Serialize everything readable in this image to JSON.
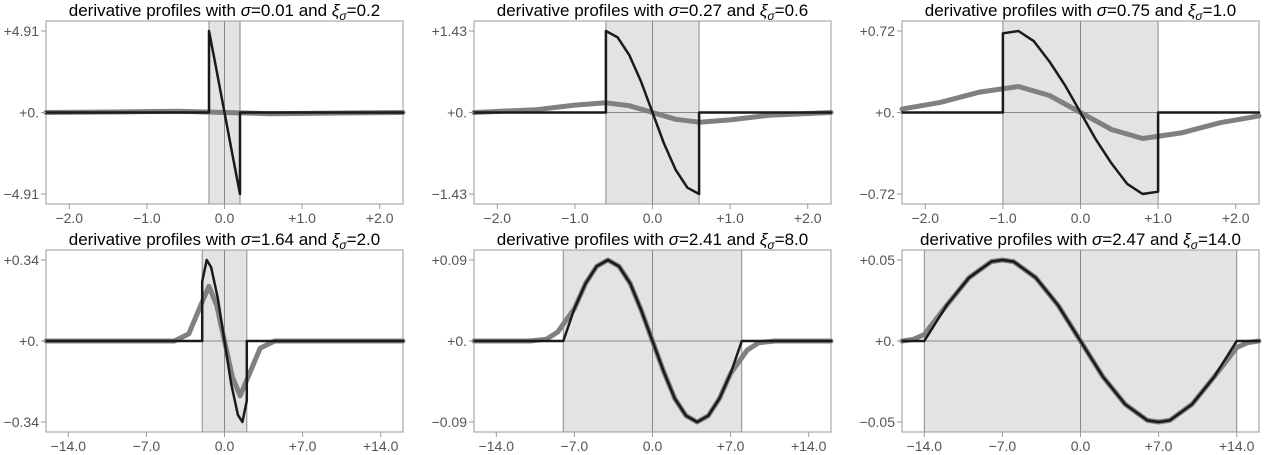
{
  "chart_data": [
    {
      "type": "line",
      "title_prefix": "derivative profiles with ",
      "sigma_symbol": "σ",
      "sigma": "0.01",
      "and_word": " and ",
      "xi_symbol": "ξ",
      "xi_sub": "σ",
      "xi": "0.2",
      "xlim": [
        -2.3,
        2.3
      ],
      "ylim": [
        -4.91,
        4.91
      ],
      "xticks": [
        -2.0,
        -1.0,
        0.0,
        1.0,
        2.0
      ],
      "xtick_labels": [
        "−2.0",
        "−1.0",
        "0.0",
        "+1.0",
        "+2.0"
      ],
      "yticks": [
        4.91,
        0.0,
        -4.91
      ],
      "ytick_labels": [
        "+4.91",
        "+0.",
        "−4.91"
      ],
      "shaded_region": [
        -0.2,
        0.2
      ],
      "gray_amp": 0.07,
      "series": [
        {
          "color": "#1a1a1a",
          "x": [
            -2.3,
            -0.2,
            -0.2,
            -0.1,
            0.0,
            0.1,
            0.2,
            0.2,
            2.3
          ],
          "y": [
            0.0,
            0.0,
            4.91,
            2.5,
            0.0,
            -2.5,
            -4.91,
            0.0,
            0.0
          ]
        },
        {
          "color": "#808080",
          "x": [
            -2.3,
            -1.2,
            -0.6,
            0.0,
            0.6,
            1.2,
            2.3
          ],
          "y": [
            0.0,
            0.04,
            0.07,
            0.0,
            -0.07,
            -0.04,
            0.0
          ]
        }
      ]
    },
    {
      "type": "line",
      "title_prefix": "derivative profiles with ",
      "sigma_symbol": "σ",
      "sigma": "0.27",
      "and_word": " and ",
      "xi_symbol": "ξ",
      "xi_sub": "σ",
      "xi": "0.6",
      "xlim": [
        -2.3,
        2.3
      ],
      "ylim": [
        -1.43,
        1.43
      ],
      "xticks": [
        -2.0,
        -1.0,
        0.0,
        1.0,
        2.0
      ],
      "xtick_labels": [
        "−2.0",
        "−1.0",
        "0.0",
        "+1.0",
        "+2.0"
      ],
      "yticks": [
        1.43,
        0.0,
        -1.43
      ],
      "ytick_labels": [
        "+1.43",
        "+0.",
        "−1.43"
      ],
      "shaded_region": [
        -0.6,
        0.6
      ],
      "gray_amp": 0.17,
      "series": [
        {
          "color": "#1a1a1a",
          "x": [
            -2.3,
            -0.6,
            -0.6,
            -0.45,
            -0.3,
            -0.15,
            0.0,
            0.15,
            0.3,
            0.45,
            0.6,
            0.6,
            2.3
          ],
          "y": [
            0.0,
            0.0,
            1.43,
            1.32,
            1.01,
            0.55,
            0.0,
            -0.55,
            -1.01,
            -1.32,
            -1.43,
            0.0,
            0.0
          ]
        },
        {
          "color": "#808080",
          "x": [
            -2.3,
            -1.5,
            -1.0,
            -0.6,
            -0.3,
            0.0,
            0.3,
            0.6,
            1.0,
            1.5,
            2.3
          ],
          "y": [
            0.0,
            0.05,
            0.13,
            0.17,
            0.12,
            0.0,
            -0.12,
            -0.17,
            -0.13,
            -0.05,
            0.0
          ]
        }
      ]
    },
    {
      "type": "line",
      "title_prefix": "derivative profiles with ",
      "sigma_symbol": "σ",
      "sigma": "0.75",
      "and_word": " and ",
      "xi_symbol": "ξ",
      "xi_sub": "σ",
      "xi": "1.0",
      "xlim": [
        -2.3,
        2.3
      ],
      "ylim": [
        -0.72,
        0.72
      ],
      "xticks": [
        -2.0,
        -1.0,
        0.0,
        1.0,
        2.0
      ],
      "xtick_labels": [
        "−2.0",
        "−1.0",
        "0.0",
        "+1.0",
        "+2.0"
      ],
      "yticks": [
        0.72,
        0.0,
        -0.72
      ],
      "ytick_labels": [
        "+0.72",
        "+0.",
        "−0.72"
      ],
      "shaded_region": [
        -1.0,
        1.0
      ],
      "gray_amp": 0.23,
      "series": [
        {
          "color": "#1a1a1a",
          "x": [
            -2.3,
            -1.0,
            -1.0,
            -0.8,
            -0.6,
            -0.4,
            -0.2,
            0.0,
            0.2,
            0.4,
            0.6,
            0.8,
            1.0,
            1.0,
            2.3
          ],
          "y": [
            0.0,
            0.0,
            0.7,
            0.72,
            0.63,
            0.45,
            0.24,
            0.0,
            -0.24,
            -0.45,
            -0.63,
            -0.72,
            -0.7,
            0.0,
            0.0
          ]
        },
        {
          "color": "#808080",
          "x": [
            -2.3,
            -1.8,
            -1.3,
            -0.8,
            -0.4,
            0.0,
            0.4,
            0.8,
            1.3,
            1.8,
            2.3
          ],
          "y": [
            0.03,
            0.09,
            0.18,
            0.23,
            0.15,
            0.0,
            -0.15,
            -0.23,
            -0.18,
            -0.09,
            -0.03
          ]
        }
      ]
    },
    {
      "type": "line",
      "title_prefix": "derivative profiles with ",
      "sigma_symbol": "σ",
      "sigma": "1.64",
      "and_word": " and ",
      "xi_symbol": "ξ",
      "xi_sub": "σ",
      "xi": "2.0",
      "xlim": [
        -16.0,
        16.0
      ],
      "ylim": [
        -0.34,
        0.34
      ],
      "xticks": [
        -14.0,
        -7.0,
        0.0,
        7.0,
        14.0
      ],
      "xtick_labels": [
        "−14.0",
        "−7.0",
        "0.0",
        "+7.0",
        "+14.0"
      ],
      "yticks": [
        0.34,
        0.0,
        -0.34
      ],
      "ytick_labels": [
        "+0.34",
        "+0.",
        "−0.34"
      ],
      "shaded_region": [
        -2.0,
        2.0
      ],
      "gray_amp": 0.23,
      "series": [
        {
          "color": "#1a1a1a",
          "x": [
            -16.0,
            -2.0,
            -2.0,
            -1.6,
            -1.2,
            -0.6,
            0.0,
            0.6,
            1.2,
            1.6,
            2.0,
            2.0,
            16.0
          ],
          "y": [
            0.0,
            0.0,
            0.25,
            0.34,
            0.31,
            0.18,
            0.0,
            -0.18,
            -0.31,
            -0.34,
            -0.25,
            0.0,
            0.0
          ]
        },
        {
          "color": "#808080",
          "x": [
            -16.0,
            -4.5,
            -3.2,
            -2.3,
            -1.4,
            -0.7,
            0.0,
            0.7,
            1.4,
            2.3,
            3.2,
            4.5,
            16.0
          ],
          "y": [
            0.0,
            0.0,
            0.03,
            0.13,
            0.23,
            0.15,
            0.0,
            -0.15,
            -0.23,
            -0.13,
            -0.03,
            0.0,
            0.0
          ]
        }
      ]
    },
    {
      "type": "line",
      "title_prefix": "derivative profiles with ",
      "sigma_symbol": "σ",
      "sigma": "2.41",
      "and_word": " and ",
      "xi_symbol": "ξ",
      "xi_sub": "σ",
      "xi": "8.0",
      "xlim": [
        -16.0,
        16.0
      ],
      "ylim": [
        -0.09,
        0.09
      ],
      "xticks": [
        -14.0,
        -7.0,
        0.0,
        7.0,
        14.0
      ],
      "xtick_labels": [
        "−14.0",
        "−7.0",
        "0.0",
        "+7.0",
        "+14.0"
      ],
      "yticks": [
        0.09,
        0.0,
        -0.09
      ],
      "ytick_labels": [
        "+0.09",
        "+0.",
        "−0.09"
      ],
      "shaded_region": [
        -8.0,
        8.0
      ],
      "gray_amp": 0.09,
      "series": [
        {
          "color": "#1a1a1a",
          "x": [
            -16.0,
            -8.0,
            -7.0,
            -6.0,
            -5.0,
            -4.0,
            -3.0,
            -2.0,
            -1.0,
            0.0,
            1.0,
            2.0,
            3.0,
            4.0,
            5.0,
            6.0,
            7.0,
            8.0,
            16.0
          ],
          "y": [
            0.0,
            0.0,
            0.036,
            0.064,
            0.083,
            0.09,
            0.083,
            0.064,
            0.034,
            0.0,
            -0.034,
            -0.064,
            -0.083,
            -0.09,
            -0.083,
            -0.064,
            -0.036,
            0.0,
            0.0
          ]
        },
        {
          "color": "#808080",
          "x": [
            -16.0,
            -11.0,
            -9.5,
            -8.5,
            -7.0,
            -6.0,
            -5.0,
            -4.0,
            -3.0,
            -2.0,
            -1.0,
            0.0,
            1.0,
            2.0,
            3.0,
            4.0,
            5.0,
            6.0,
            7.0,
            8.5,
            9.5,
            11.0,
            16.0
          ],
          "y": [
            0.0,
            0.0,
            0.002,
            0.01,
            0.036,
            0.064,
            0.083,
            0.09,
            0.083,
            0.064,
            0.034,
            0.0,
            -0.034,
            -0.064,
            -0.083,
            -0.09,
            -0.083,
            -0.064,
            -0.036,
            -0.01,
            -0.002,
            0.0,
            0.0
          ]
        }
      ]
    },
    {
      "type": "line",
      "title_prefix": "derivative profiles with ",
      "sigma_symbol": "σ",
      "sigma": "2.47",
      "and_word": " and ",
      "xi_symbol": "ξ",
      "xi_sub": "σ",
      "xi": "14.0",
      "xlim": [
        -16.0,
        16.0
      ],
      "ylim": [
        -0.05,
        0.05
      ],
      "xticks": [
        -14.0,
        -7.0,
        0.0,
        7.0,
        14.0
      ],
      "xtick_labels": [
        "−14.0",
        "−7.0",
        "0.0",
        "+7.0",
        "+14.0"
      ],
      "yticks": [
        0.05,
        0.0,
        -0.05
      ],
      "ytick_labels": [
        "+0.05",
        "+0.",
        "−0.05"
      ],
      "shaded_region": [
        -14.0,
        14.0
      ],
      "gray_amp": 0.05,
      "series": [
        {
          "color": "#1a1a1a",
          "x": [
            -16.0,
            -14.0,
            -12.0,
            -10.0,
            -8.0,
            -7.0,
            -6.0,
            -4.0,
            -2.0,
            0.0,
            2.0,
            4.0,
            6.0,
            7.0,
            8.0,
            10.0,
            12.0,
            14.0,
            16.0
          ],
          "y": [
            0.0,
            0.0,
            0.022,
            0.039,
            0.049,
            0.05,
            0.049,
            0.039,
            0.022,
            0.0,
            -0.022,
            -0.039,
            -0.049,
            -0.05,
            -0.049,
            -0.039,
            -0.022,
            0.0,
            0.0
          ]
        },
        {
          "color": "#808080",
          "x": [
            -16.0,
            -15.0,
            -14.0,
            -12.0,
            -10.0,
            -8.0,
            -7.0,
            -6.0,
            -4.0,
            -2.0,
            0.0,
            2.0,
            4.0,
            6.0,
            7.0,
            8.0,
            10.0,
            12.0,
            14.0,
            15.0,
            16.0
          ],
          "y": [
            0.0,
            0.001,
            0.004,
            0.022,
            0.039,
            0.049,
            0.05,
            0.049,
            0.039,
            0.022,
            0.0,
            -0.022,
            -0.039,
            -0.049,
            -0.05,
            -0.049,
            -0.039,
            -0.022,
            -0.004,
            -0.001,
            0.0
          ]
        }
      ]
    }
  ]
}
